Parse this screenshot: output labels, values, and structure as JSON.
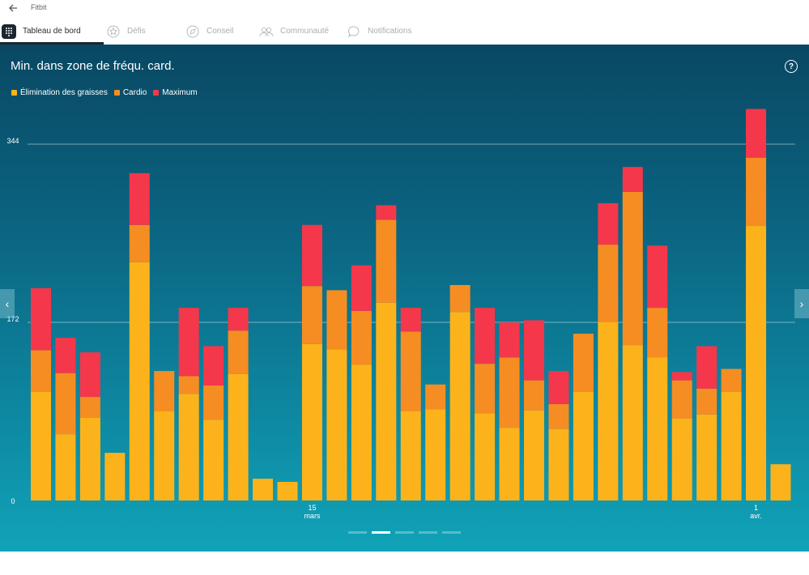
{
  "window": {
    "title": "Fitbit"
  },
  "nav": {
    "items": [
      {
        "label": "Tableau de bord",
        "icon": "dashboard-grid-icon",
        "active": true
      },
      {
        "label": "Défis",
        "icon": "challenge-star-icon",
        "active": false
      },
      {
        "label": "Conseil",
        "icon": "guidance-compass-icon",
        "active": false
      },
      {
        "label": "Communauté",
        "icon": "community-people-icon",
        "active": false
      },
      {
        "label": "Notifications",
        "icon": "notifications-bubble-icon",
        "active": false
      }
    ]
  },
  "panel": {
    "help_label": "?"
  },
  "colors": {
    "fat_burn": "#fcb31b",
    "cardio": "#f68d22",
    "peak": "#f4374b"
  },
  "chart_data": {
    "type": "bar",
    "stacked": true,
    "title": "Min. dans zone de fréqu. card.",
    "series": [
      {
        "name": "Élimination des graisses",
        "values": [
          105,
          64,
          80,
          46,
          230,
          86,
          103,
          78,
          122,
          21,
          18,
          151,
          146,
          131,
          191,
          86,
          88,
          182,
          84,
          70,
          87,
          69,
          105,
          172,
          150,
          138,
          79,
          83,
          105,
          265,
          35
        ]
      },
      {
        "name": "Cardio",
        "values": [
          40,
          59,
          20,
          0,
          36,
          39,
          17,
          33,
          42,
          0,
          0,
          56,
          57,
          52,
          80,
          77,
          24,
          26,
          48,
          68,
          29,
          24,
          56,
          75,
          148,
          48,
          37,
          25,
          22,
          66,
          0
        ]
      },
      {
        "name": "Maximum",
        "values": [
          60,
          34,
          43,
          0,
          50,
          0,
          66,
          38,
          22,
          0,
          0,
          59,
          0,
          44,
          14,
          23,
          0,
          0,
          54,
          34,
          58,
          32,
          0,
          40,
          24,
          60,
          8,
          41,
          0,
          47,
          0
        ]
      }
    ],
    "yticks": [
      0,
      172,
      344
    ],
    "ylim": [
      0,
      380
    ],
    "xtick_labels": [
      {
        "index": 11,
        "day": "15",
        "month": "mars"
      },
      {
        "index": 29,
        "day": "1",
        "month": "avr."
      }
    ],
    "legend_position": "top-left",
    "grid": true
  },
  "pager": {
    "count": 5,
    "active": 1
  }
}
